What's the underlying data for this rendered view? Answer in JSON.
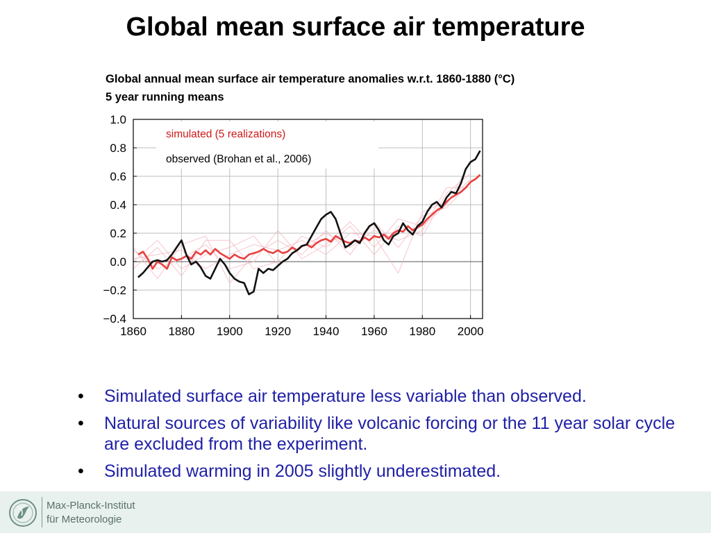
{
  "slide": {
    "title": "Global mean surface air temperature"
  },
  "chart_data": {
    "type": "line",
    "title": "Global annual mean surface air temperature anomalies w.r.t. 1860-1880 (°C)",
    "subtitle": "5 year running means",
    "xlabel": "",
    "ylabel": "",
    "xlim": [
      1860,
      2005
    ],
    "ylim": [
      -0.4,
      1.0
    ],
    "x_ticks": [
      "1860",
      "1880",
      "1900",
      "1920",
      "1940",
      "1960",
      "1980",
      "2000"
    ],
    "y_ticks": [
      "1.0",
      "0.8",
      "0.6",
      "0.4",
      "0.2",
      "0.0",
      "−0.2",
      "−0.4"
    ],
    "grid": true,
    "legend_position": "top-left (inside plot)",
    "colors": {
      "simulated": "#e84040",
      "observed": "#111111",
      "realizations": "#f4b8c0"
    },
    "series": [
      {
        "name": "simulated (5 realizations)",
        "x": [
          1862,
          1864,
          1866,
          1868,
          1870,
          1872,
          1874,
          1876,
          1878,
          1880,
          1882,
          1884,
          1886,
          1888,
          1890,
          1892,
          1894,
          1896,
          1898,
          1900,
          1902,
          1904,
          1906,
          1908,
          1910,
          1912,
          1914,
          1916,
          1918,
          1920,
          1922,
          1924,
          1926,
          1928,
          1930,
          1932,
          1934,
          1936,
          1938,
          1940,
          1942,
          1944,
          1946,
          1948,
          1950,
          1952,
          1954,
          1956,
          1958,
          1960,
          1962,
          1964,
          1966,
          1968,
          1970,
          1972,
          1974,
          1976,
          1978,
          1980,
          1982,
          1984,
          1986,
          1988,
          1990,
          1992,
          1994,
          1996,
          1998,
          2000,
          2002,
          2004
        ],
        "y": [
          0.05,
          0.07,
          0.02,
          -0.05,
          0.0,
          -0.02,
          -0.05,
          0.03,
          0.01,
          0.02,
          0.04,
          0.02,
          0.07,
          0.05,
          0.08,
          0.05,
          0.09,
          0.06,
          0.04,
          0.02,
          0.05,
          0.03,
          0.02,
          0.05,
          0.06,
          0.07,
          0.09,
          0.07,
          0.06,
          0.08,
          0.06,
          0.07,
          0.1,
          0.08,
          0.11,
          0.12,
          0.1,
          0.13,
          0.15,
          0.16,
          0.14,
          0.18,
          0.16,
          0.14,
          0.13,
          0.15,
          0.14,
          0.17,
          0.15,
          0.18,
          0.17,
          0.19,
          0.16,
          0.2,
          0.22,
          0.21,
          0.25,
          0.22,
          0.24,
          0.26,
          0.3,
          0.33,
          0.36,
          0.38,
          0.42,
          0.45,
          0.47,
          0.49,
          0.52,
          0.56,
          0.58,
          0.61
        ]
      },
      {
        "name": "observed (Brohan et al., 2006)",
        "x": [
          1862,
          1864,
          1866,
          1868,
          1870,
          1872,
          1874,
          1876,
          1878,
          1880,
          1882,
          1884,
          1886,
          1888,
          1890,
          1892,
          1894,
          1896,
          1898,
          1900,
          1902,
          1904,
          1906,
          1908,
          1910,
          1912,
          1914,
          1916,
          1918,
          1920,
          1922,
          1924,
          1926,
          1928,
          1930,
          1932,
          1934,
          1936,
          1938,
          1940,
          1942,
          1944,
          1946,
          1948,
          1950,
          1952,
          1954,
          1956,
          1958,
          1960,
          1962,
          1964,
          1966,
          1968,
          1970,
          1972,
          1974,
          1976,
          1978,
          1980,
          1982,
          1984,
          1986,
          1988,
          1990,
          1992,
          1994,
          1996,
          1998,
          2000,
          2002,
          2004
        ],
        "y": [
          -0.11,
          -0.08,
          -0.04,
          0.0,
          0.01,
          0.0,
          0.01,
          0.05,
          0.1,
          0.15,
          0.05,
          -0.02,
          0.0,
          -0.04,
          -0.1,
          -0.12,
          -0.05,
          0.02,
          -0.02,
          -0.08,
          -0.12,
          -0.14,
          -0.15,
          -0.23,
          -0.21,
          -0.05,
          -0.08,
          -0.05,
          -0.06,
          -0.03,
          0.0,
          0.02,
          0.06,
          0.08,
          0.11,
          0.12,
          0.18,
          0.24,
          0.3,
          0.33,
          0.35,
          0.3,
          0.2,
          0.1,
          0.12,
          0.15,
          0.13,
          0.2,
          0.25,
          0.27,
          0.22,
          0.15,
          0.12,
          0.18,
          0.2,
          0.27,
          0.22,
          0.19,
          0.25,
          0.28,
          0.35,
          0.4,
          0.42,
          0.38,
          0.45,
          0.49,
          0.48,
          0.55,
          0.65,
          0.7,
          0.72,
          0.78
        ]
      }
    ],
    "realizations": [
      {
        "x": [
          1860,
          1870,
          1880,
          1890,
          1900,
          1910,
          1920,
          1930,
          1940,
          1950,
          1960,
          1970,
          1980,
          1990,
          2000
        ],
        "y": [
          0.1,
          -0.12,
          0.12,
          0.18,
          -0.15,
          0.05,
          0.15,
          0.05,
          0.22,
          0.05,
          0.28,
          0.1,
          0.32,
          0.38,
          0.55
        ]
      },
      {
        "x": [
          1860,
          1870,
          1880,
          1890,
          1900,
          1910,
          1920,
          1930,
          1940,
          1950,
          1960,
          1970,
          1980,
          1990,
          2000
        ],
        "y": [
          -0.05,
          0.1,
          -0.1,
          0.15,
          0.15,
          -0.05,
          0.0,
          0.18,
          0.1,
          0.25,
          0.05,
          0.25,
          0.18,
          0.48,
          0.62
        ]
      },
      {
        "x": [
          1860,
          1870,
          1880,
          1890,
          1900,
          1910,
          1920,
          1930,
          1940,
          1950,
          1960,
          1970,
          1980,
          1990,
          2000
        ],
        "y": [
          0.02,
          0.05,
          0.08,
          -0.05,
          0.05,
          0.12,
          0.08,
          0.15,
          0.05,
          0.2,
          0.18,
          -0.08,
          0.35,
          0.42,
          0.58
        ]
      },
      {
        "x": [
          1860,
          1870,
          1880,
          1890,
          1900,
          1910,
          1920,
          1930,
          1940,
          1950,
          1960,
          1970,
          1980,
          1990,
          2000
        ],
        "y": [
          0.08,
          -0.05,
          0.02,
          0.12,
          -0.05,
          0.0,
          0.22,
          0.02,
          0.12,
          0.28,
          0.1,
          0.3,
          0.25,
          0.4,
          0.7
        ]
      },
      {
        "x": [
          1860,
          1870,
          1880,
          1890,
          1900,
          1910,
          1920,
          1930,
          1940,
          1950,
          1960,
          1970,
          1980,
          1990,
          2000
        ],
        "y": [
          0.0,
          0.15,
          -0.05,
          0.05,
          0.1,
          0.18,
          -0.02,
          0.1,
          0.2,
          0.1,
          0.22,
          0.15,
          0.22,
          0.52,
          0.52
        ]
      }
    ]
  },
  "bullets": [
    "Simulated surface air temperature less variable than observed.",
    "Natural sources of variability like volcanic forcing or the 11 year solar cycle are excluded from the experiment.",
    "Simulated warming in 2005 slightly underestimated."
  ],
  "footer": {
    "line1": "Max-Planck-Institut",
    "line2": "für Meteorologie"
  }
}
